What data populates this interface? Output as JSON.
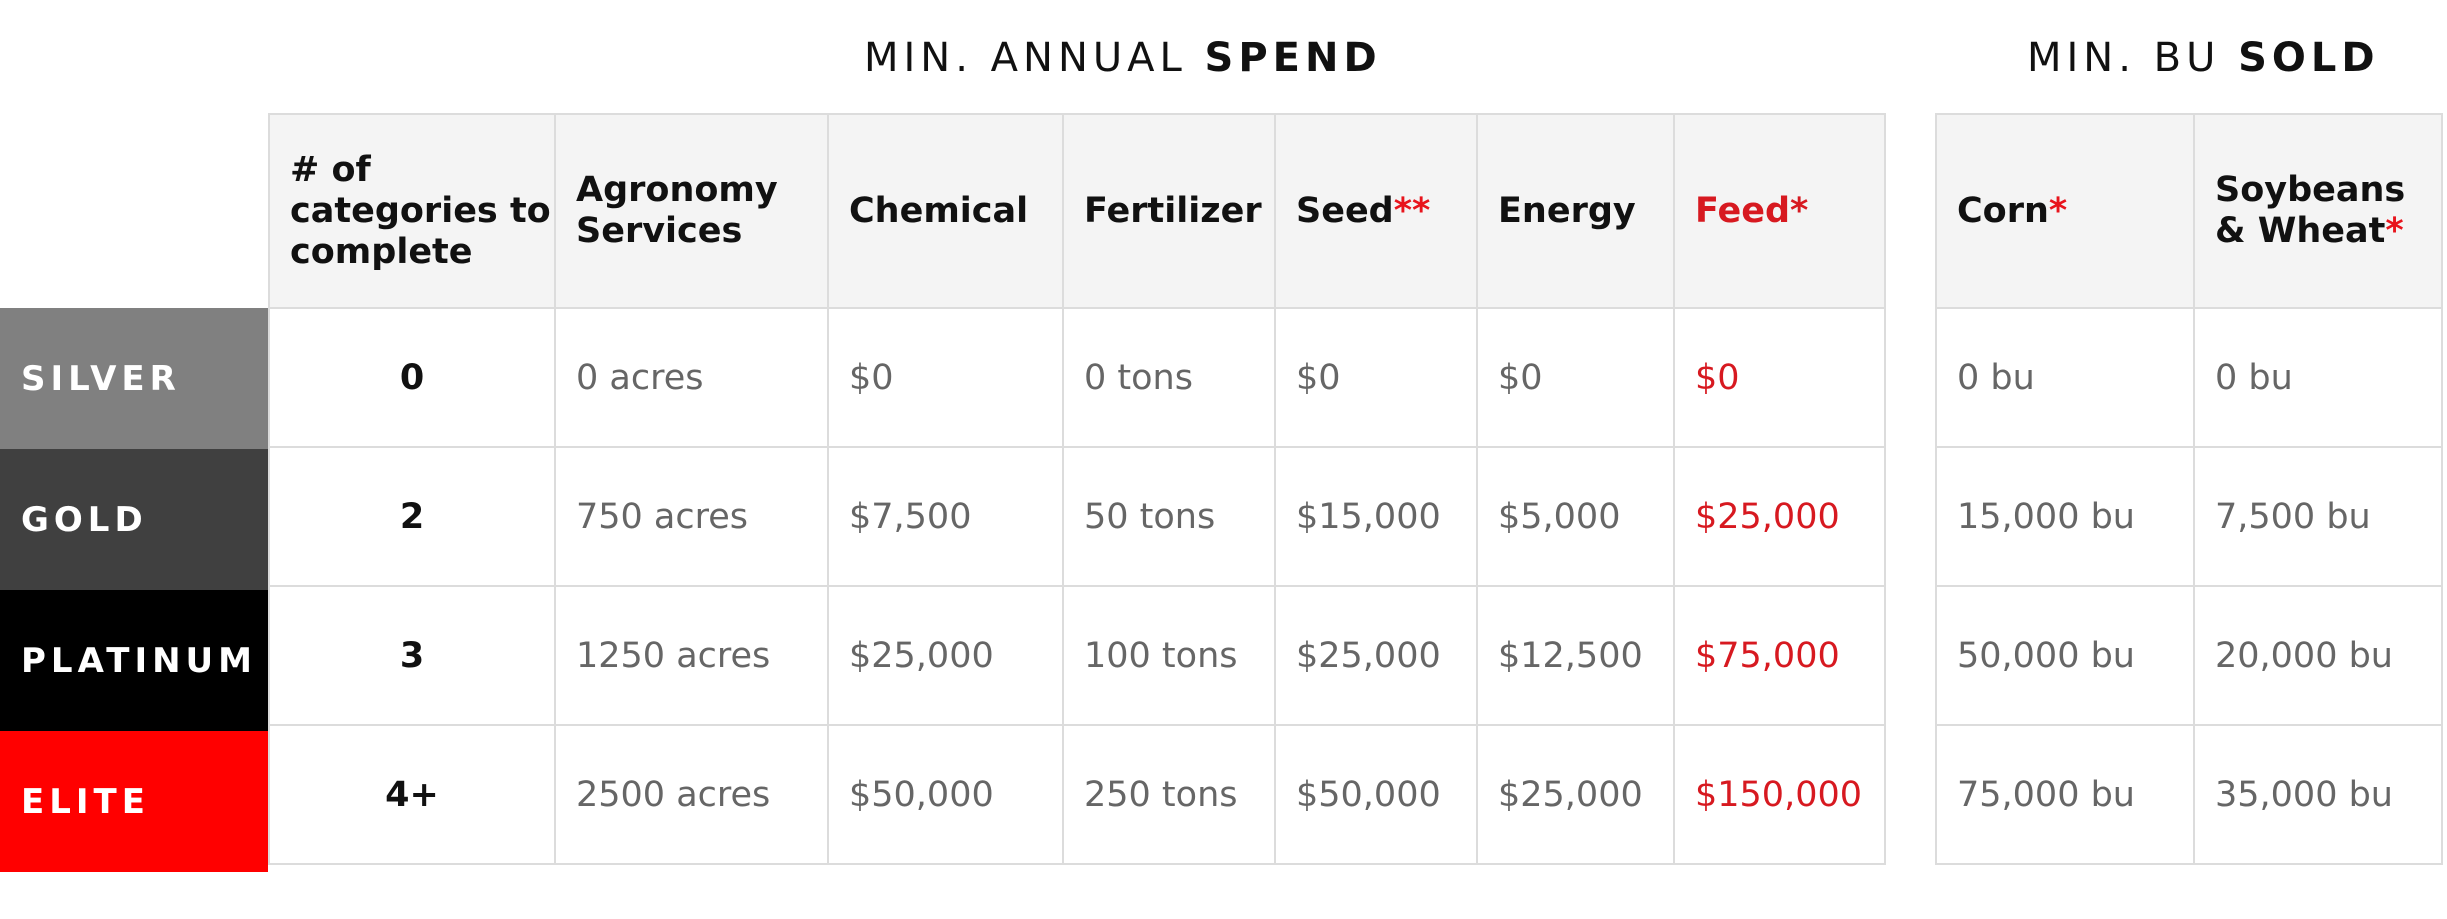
{
  "headings": {
    "spend": {
      "light": "MIN. ANNUAL ",
      "bold": "SPEND"
    },
    "sold": {
      "light": "MIN. BU ",
      "bold": "SOLD"
    }
  },
  "spend_headers": {
    "count": "# of categories to complete",
    "agronomy": "Agronomy Services",
    "chemical": "Chemical",
    "fertilizer": "Fertilizer",
    "seed": "Seed",
    "seed_mark": "**",
    "energy": "Energy",
    "feed": "Feed",
    "feed_mark": "*"
  },
  "sold_headers": {
    "corn": "Corn",
    "corn_mark": "*",
    "soy_wheat": "Soybeans & Wheat",
    "soy_wheat_mark": "*"
  },
  "tiers": [
    {
      "label": "SILVER",
      "color": "#808080",
      "count": "0",
      "agronomy": "0 acres",
      "chemical": "$0",
      "fertilizer": "0 tons",
      "seed": "$0",
      "energy": "$0",
      "feed": "$0",
      "corn": "0 bu",
      "soy_wheat": "0 bu"
    },
    {
      "label": "GOLD",
      "color": "#404040",
      "count": "2",
      "agronomy": "750 acres",
      "chemical": "$7,500",
      "fertilizer": "50 tons",
      "seed": "$15,000",
      "energy": "$5,000",
      "feed": "$25,000",
      "corn": "15,000 bu",
      "soy_wheat": "7,500 bu"
    },
    {
      "label": "PLATINUM",
      "color": "#000000",
      "count": "3",
      "agronomy": "1250 acres",
      "chemical": "$25,000",
      "fertilizer": "100 tons",
      "seed": "$25,000",
      "energy": "$12,500",
      "feed": "$75,000",
      "corn": "50,000 bu",
      "soy_wheat": "20,000 bu"
    },
    {
      "label": "ELITE",
      "color": "#ff0000",
      "count": "4+",
      "agronomy": "2500 acres",
      "chemical": "$50,000",
      "fertilizer": "250 tons",
      "seed": "$50,000",
      "energy": "$25,000",
      "feed": "$150,000",
      "corn": "75,000 bu",
      "soy_wheat": "35,000 bu"
    }
  ],
  "colors": {
    "accent_red": "#d71920",
    "header_bg": "#f4f4f4",
    "grid_line": "#dcdcdc",
    "value_text": "#666666"
  }
}
